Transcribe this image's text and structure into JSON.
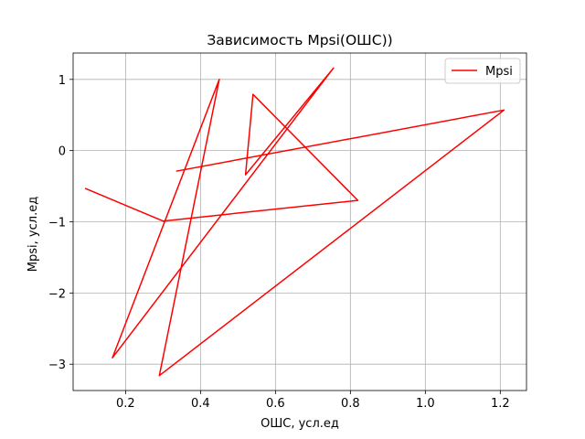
{
  "chart_data": {
    "type": "line",
    "title": "Зависимость Mpsi(ОШС))",
    "xlabel": "ОШС, усл.ед",
    "ylabel": "Mpsi, усл.ед",
    "xlim": [
      0.06,
      1.27
    ],
    "ylim": [
      -3.37,
      1.37
    ],
    "xticks": [
      0.2,
      0.4,
      0.6,
      0.8,
      1.0,
      1.2
    ],
    "xtick_labels": [
      "0.2",
      "0.4",
      "0.6",
      "0.8",
      "1.0",
      "1.2"
    ],
    "yticks": [
      1,
      0,
      -1,
      -2,
      -3
    ],
    "ytick_labels": [
      "1",
      "0",
      "−1",
      "−2",
      "−3"
    ],
    "grid": true,
    "legend_position": "top-right",
    "series": [
      {
        "name": "Mpsi",
        "color": "#ff0000",
        "x": [
          0.092,
          0.3,
          0.82,
          0.54,
          0.52,
          0.755,
          0.165,
          0.45,
          0.29,
          1.21,
          0.335
        ],
        "y": [
          -0.53,
          -0.99,
          -0.7,
          0.79,
          -0.34,
          1.16,
          -2.91,
          1.0,
          -3.16,
          0.57,
          -0.29
        ]
      }
    ]
  }
}
